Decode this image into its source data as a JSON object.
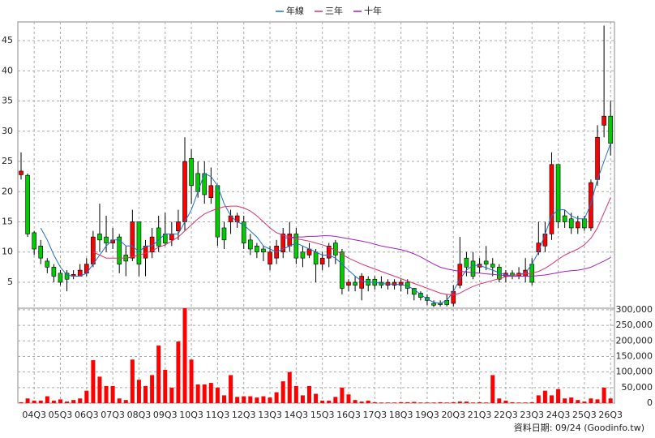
{
  "chart_data": {
    "type": "candlestick",
    "legend": "top",
    "grid": true,
    "footer": "資料日期: 09/24 (Goodinfo.tw)",
    "categories": [
      null,
      null,
      "04Q3",
      null,
      null,
      null,
      "05Q3",
      null,
      null,
      null,
      "06Q3",
      null,
      null,
      null,
      "07Q3",
      null,
      null,
      null,
      "08Q3",
      null,
      null,
      null,
      "09Q3",
      null,
      null,
      null,
      "10Q3",
      null,
      null,
      null,
      "11Q3",
      null,
      null,
      null,
      "12Q3",
      null,
      null,
      null,
      "13Q3",
      null,
      null,
      null,
      "14Q3",
      null,
      null,
      null,
      "15Q3",
      null,
      null,
      null,
      "16Q3",
      null,
      null,
      null,
      "17Q3",
      null,
      null,
      null,
      "18Q3",
      null,
      null,
      null,
      "19Q3",
      null,
      null,
      null,
      "20Q3",
      null,
      null,
      null,
      "21Q3",
      null,
      null,
      null,
      "22Q3",
      null,
      null,
      null,
      "23Q3",
      null,
      null,
      null,
      "24Q3",
      null,
      null,
      null,
      "25Q3",
      null,
      null,
      null,
      "26Q3"
    ],
    "ohlc": {
      "up_color": "#ff0000",
      "down_color": "#00cc00",
      "open": [
        22.8,
        22.7,
        13.2,
        11,
        8.5,
        7.5,
        6.5,
        6.5,
        6,
        6,
        6.5,
        8,
        13,
        12.5,
        11.5,
        12.5,
        9.5,
        9,
        15,
        9,
        10,
        14,
        13,
        12,
        13.5,
        15,
        25.5,
        23,
        23,
        19,
        21,
        14,
        15,
        15,
        15,
        12,
        11,
        10.5,
        8,
        9,
        10,
        11,
        13,
        10,
        9.5,
        10,
        8,
        9,
        11.5,
        10,
        4.5,
        5,
        4,
        5.5,
        5.5,
        5,
        4.5,
        4.5,
        4.5,
        5,
        4,
        3.2,
        2.5,
        1.5,
        1.5,
        2,
        1.5,
        4.5,
        9,
        8.5,
        7.5,
        8.5,
        8,
        7.5,
        6,
        6.5,
        6,
        6,
        8,
        10,
        11,
        13,
        24.5,
        16,
        15.5,
        14,
        15.5,
        14,
        22,
        31,
        32.5
      ],
      "high": [
        26.5,
        23,
        13.5,
        12,
        9,
        8,
        7,
        7,
        7,
        8,
        9,
        13.5,
        18,
        16,
        14,
        13,
        11,
        17,
        15,
        12,
        14,
        16,
        16.5,
        15,
        17,
        29,
        27,
        25,
        25,
        24,
        21,
        15,
        17,
        16.5,
        16,
        13,
        11.5,
        11,
        11,
        12,
        14,
        15,
        14,
        11,
        11.5,
        10.5,
        10,
        11.5,
        12,
        10.5,
        5.5,
        6,
        6.5,
        6,
        6,
        6,
        5.5,
        5.5,
        5.5,
        5.5,
        4,
        3.5,
        3,
        2,
        2,
        3,
        4.5,
        12.5,
        10,
        10,
        9,
        11,
        9,
        8,
        7,
        7,
        7.5,
        9,
        9,
        15,
        15,
        26.5,
        24.5,
        17,
        16.5,
        16,
        16,
        22,
        31,
        47.5,
        35
      ],
      "low": [
        22,
        12.5,
        9.5,
        8,
        6.5,
        5,
        4.5,
        3.5,
        5.5,
        6,
        6,
        7.5,
        10,
        10,
        10.5,
        6.5,
        6,
        8.5,
        6,
        6,
        9,
        10,
        11,
        11,
        12,
        13.5,
        18,
        19,
        18,
        18,
        11,
        10.5,
        13,
        14,
        10.5,
        9.5,
        9,
        8.5,
        7,
        8,
        9,
        10,
        8,
        7.5,
        9,
        5,
        7,
        7.5,
        8,
        3,
        3.5,
        3.5,
        2,
        3.5,
        3.8,
        4,
        3.8,
        3.8,
        3.5,
        3,
        2,
        2,
        1.2,
        0.9,
        1,
        1,
        1,
        4,
        6,
        5.5,
        6.5,
        7,
        6,
        5,
        5,
        5.5,
        5.5,
        5,
        4.5,
        9.5,
        10,
        12,
        14,
        14,
        13,
        13,
        13.5,
        13.5,
        21,
        29,
        26
      ],
      "close": [
        23.4,
        13,
        10.5,
        9,
        7.5,
        6,
        5,
        5.5,
        6.3,
        7,
        8,
        12.5,
        12,
        11.5,
        12,
        8,
        8.5,
        15,
        8,
        11,
        12.5,
        11,
        11.5,
        13,
        15,
        25,
        21,
        20,
        19.5,
        21,
        12.5,
        12,
        16,
        16,
        11.5,
        10.5,
        10,
        10,
        10,
        11,
        13,
        13,
        9,
        9,
        10.5,
        8,
        9,
        11,
        9.5,
        4,
        5,
        4.5,
        6,
        4.5,
        4.5,
        4.5,
        5,
        5,
        5,
        4,
        3,
        2.5,
        2,
        1.2,
        1.3,
        1.3,
        3.5,
        8,
        7.5,
        6,
        8,
        8,
        7.5,
        5.5,
        6.5,
        6,
        6.5,
        7,
        5,
        11.5,
        13,
        24.5,
        15,
        15,
        14,
        15,
        14,
        21.5,
        29,
        32.5,
        28
      ]
    },
    "series": [
      {
        "name": "年線",
        "color": "#1f6fd0",
        "values": [
          null,
          null,
          null,
          14,
          12,
          9.5,
          7.5,
          6.2,
          6,
          6,
          6.5,
          8,
          9.5,
          11,
          12,
          12,
          11,
          11,
          10,
          11,
          11,
          12,
          13,
          13,
          13,
          15,
          17,
          20,
          23,
          22.5,
          21,
          18,
          16,
          15,
          14.5,
          13.5,
          12.5,
          11,
          10.5,
          10,
          10.5,
          11,
          11.5,
          11,
          10.5,
          10,
          9.5,
          9.5,
          9,
          8,
          7,
          6,
          5.2,
          5,
          5,
          4.8,
          4.7,
          4.7,
          4.6,
          4.4,
          3.8,
          3,
          2.2,
          1.7,
          1.5,
          2,
          3.5,
          5.5,
          7,
          7.8,
          7.8,
          7.4,
          7,
          6.6,
          6.2,
          6.1,
          6.3,
          6.5,
          8,
          10,
          13,
          16,
          17,
          17,
          16,
          15.5,
          15.5,
          18,
          22,
          25,
          28
        ]
      },
      {
        "name": "三年",
        "color": "#e0306a",
        "values": [
          null,
          null,
          null,
          null,
          null,
          null,
          null,
          null,
          null,
          null,
          null,
          10,
          9.5,
          9,
          9,
          9,
          9,
          9.2,
          9.5,
          9.8,
          10.2,
          10.8,
          11.2,
          11.8,
          12.5,
          13.5,
          14.5,
          15.5,
          16.3,
          16.8,
          17.2,
          17.5,
          17.6,
          17.6,
          17.3,
          16.8,
          16,
          15,
          14,
          13.2,
          12.8,
          12.5,
          12.2,
          12,
          11.8,
          11.5,
          11.2,
          10.8,
          10.3,
          9.6,
          9,
          8.5,
          8,
          7.6,
          7.2,
          6.8,
          6.4,
          6,
          5.6,
          5.2,
          4.8,
          4.4,
          4,
          3.6,
          3.2,
          3,
          2.9,
          3.2,
          3.8,
          4.3,
          4.7,
          5,
          5.3,
          5.6,
          5.9,
          6.1,
          6.3,
          6.4,
          6.5,
          6.8,
          7.3,
          8,
          8.8,
          9.5,
          10,
          10.5,
          11.2,
          12.3,
          14,
          16.5,
          19
        ]
      },
      {
        "name": "十年",
        "color": "#a020c0",
        "values": [
          null,
          null,
          null,
          null,
          null,
          null,
          null,
          null,
          null,
          null,
          null,
          null,
          null,
          null,
          null,
          null,
          null,
          null,
          null,
          null,
          null,
          null,
          null,
          null,
          null,
          null,
          null,
          null,
          null,
          null,
          null,
          null,
          null,
          null,
          null,
          null,
          null,
          null,
          null,
          null,
          12.3,
          12.4,
          12.5,
          12.5,
          12.6,
          12.6,
          12.7,
          12.7,
          12.6,
          12.4,
          12.2,
          12,
          11.8,
          11.6,
          11.3,
          11,
          10.8,
          10.6,
          10.4,
          10.1,
          9.7,
          9.2,
          8.6,
          8,
          7.5,
          7.2,
          7,
          6.8,
          6.7,
          6.6,
          6.5,
          6.4,
          6.3,
          6.2,
          6.1,
          6,
          6,
          6,
          6,
          6.1,
          6.2,
          6.4,
          6.6,
          6.8,
          6.9,
          7,
          7.2,
          7.5,
          8,
          8.5,
          9.1
        ]
      }
    ],
    "ylim": [
      0.7,
      48.1
    ],
    "yticks": [
      5,
      10,
      15,
      20,
      25,
      30,
      35,
      40,
      45
    ],
    "volume": {
      "axis": "y2",
      "color": "#ff0000",
      "values": [
        3000,
        15000,
        8000,
        8000,
        22000,
        8000,
        12000,
        5000,
        10000,
        15000,
        40000,
        138000,
        85000,
        55000,
        55000,
        15000,
        10000,
        140000,
        75000,
        55000,
        90000,
        185000,
        107000,
        50000,
        198000,
        305000,
        140000,
        60000,
        60000,
        65000,
        50000,
        25000,
        90000,
        20000,
        22000,
        22000,
        18000,
        22000,
        18000,
        35000,
        70000,
        100000,
        55000,
        25000,
        55000,
        30000,
        8000,
        8000,
        20000,
        50000,
        28000,
        10000,
        5000,
        8000,
        3000,
        2000,
        2000,
        2000,
        3000,
        3000,
        4000,
        2000,
        2000,
        2000,
        3000,
        2000,
        3000,
        5000,
        5000,
        2000,
        3000,
        2000,
        90000,
        15000,
        8000,
        3000,
        2000,
        2000,
        3000,
        25000,
        40000,
        25000,
        45000,
        15000,
        18000,
        10000,
        5000,
        15000,
        12000,
        50000,
        15000
      ]
    },
    "y2lim": [
      0,
      305000
    ],
    "y2ticks": [
      0,
      {
        "value": 50000,
        "label": "50,000"
      },
      {
        "value": 100000,
        "label": "100,000"
      },
      {
        "value": 150000,
        "label": "150,000"
      },
      {
        "value": 200000,
        "label": "200,000"
      },
      {
        "value": 250000,
        "label": "250,000"
      },
      {
        "value": 300000,
        "label": "300,000"
      }
    ]
  }
}
